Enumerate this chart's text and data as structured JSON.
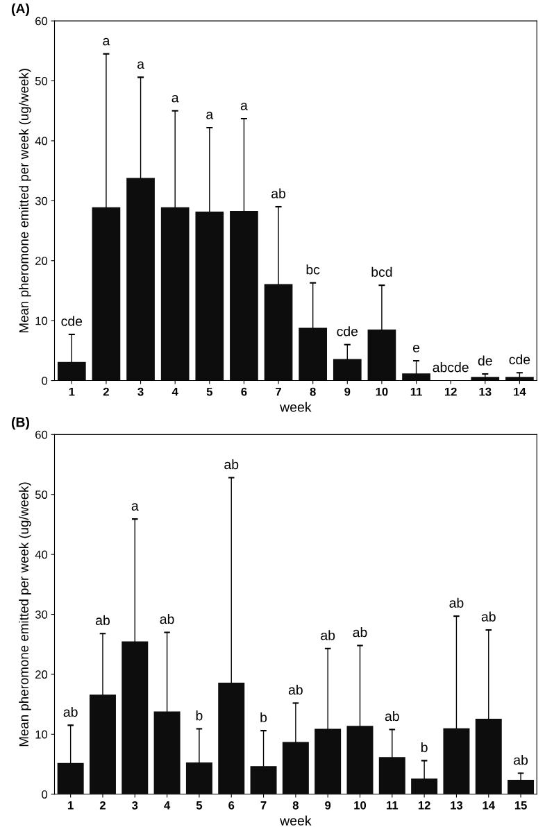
{
  "chart_data": [
    {
      "type": "bar",
      "title": "(A)",
      "xlabel": "week",
      "ylabel": "Mean pheromone emitted per week (ug/week)",
      "categories": [
        "1",
        "2",
        "3",
        "4",
        "5",
        "6",
        "7",
        "8",
        "9",
        "10",
        "11",
        "12",
        "13",
        "14"
      ],
      "values": [
        3.1,
        28.9,
        33.8,
        28.9,
        28.2,
        28.3,
        16.1,
        8.8,
        3.6,
        8.5,
        1.2,
        0,
        0.6,
        0.6
      ],
      "errors": [
        [
          3.1,
          7.7
        ],
        [
          28.9,
          54.5
        ],
        [
          33.8,
          50.6
        ],
        [
          28.9,
          45
        ],
        [
          28.2,
          42.2
        ],
        [
          28.3,
          43.7
        ],
        [
          16.1,
          29
        ],
        [
          8.8,
          16.3
        ],
        [
          3.6,
          6
        ],
        [
          8.5,
          15.9
        ],
        [
          1.2,
          3.3
        ],
        null,
        [
          0.6,
          1.1
        ],
        [
          0.6,
          1.3
        ]
      ],
      "color": "#0d0d0d",
      "ylim": [
        0,
        60
      ],
      "yticks": [
        0,
        10,
        20,
        30,
        40,
        50,
        60
      ],
      "grid": false,
      "legend": false,
      "annotations": [
        {
          "text": "cde",
          "x": "1",
          "y": 7.7
        },
        {
          "text": "a",
          "x": "2",
          "y": 54.5
        },
        {
          "text": "a",
          "x": "3",
          "y": 50.6
        },
        {
          "text": "a",
          "x": "4",
          "y": 45
        },
        {
          "text": "a",
          "x": "5",
          "y": 42.2
        },
        {
          "text": "a",
          "x": "6",
          "y": 43.7
        },
        {
          "text": "ab",
          "x": "7",
          "y": 29
        },
        {
          "text": "bc",
          "x": "8",
          "y": 16.3
        },
        {
          "text": "cde",
          "x": "9",
          "y": 6
        },
        {
          "text": "bcd",
          "x": "10",
          "y": 15.9
        },
        {
          "text": "e",
          "x": "11",
          "y": 3.3
        },
        {
          "text": "abcde",
          "x": "12",
          "y": 0
        },
        {
          "text": "de",
          "x": "13",
          "y": 1.1
        },
        {
          "text": "cde",
          "x": "14",
          "y": 1.3
        }
      ]
    },
    {
      "type": "bar",
      "title": "(B)",
      "xlabel": "week",
      "ylabel": "Mean pheromone emitted per week (ug/week)",
      "categories": [
        "1",
        "2",
        "3",
        "4",
        "5",
        "6",
        "7",
        "8",
        "9",
        "10",
        "11",
        "12",
        "13",
        "14",
        "15"
      ],
      "values": [
        5.2,
        16.6,
        25.5,
        13.8,
        5.3,
        18.6,
        4.7,
        8.7,
        10.9,
        11.4,
        6.2,
        2.6,
        11.0,
        12.6,
        2.4
      ],
      "errors": [
        [
          5.2,
          11.5
        ],
        [
          16.6,
          26.8
        ],
        [
          25.5,
          45.9
        ],
        [
          13.8,
          27
        ],
        [
          5.3,
          10.9
        ],
        [
          18.6,
          52.8
        ],
        [
          4.7,
          10.6
        ],
        [
          8.7,
          15.2
        ],
        [
          10.9,
          24.3
        ],
        [
          11.4,
          24.8
        ],
        [
          6.2,
          10.8
        ],
        [
          2.6,
          5.6
        ],
        [
          11.0,
          29.7
        ],
        [
          12.6,
          27.4
        ],
        [
          2.4,
          3.5
        ]
      ],
      "color": "#0d0d0d",
      "ylim": [
        0,
        60
      ],
      "yticks": [
        0,
        10,
        20,
        30,
        40,
        50,
        60
      ],
      "grid": false,
      "legend": false,
      "annotations": [
        {
          "text": "ab",
          "x": "1",
          "y": 11.5
        },
        {
          "text": "ab",
          "x": "2",
          "y": 26.8
        },
        {
          "text": "a",
          "x": "3",
          "y": 45.9
        },
        {
          "text": "ab",
          "x": "4",
          "y": 27
        },
        {
          "text": "b",
          "x": "5",
          "y": 10.9
        },
        {
          "text": "ab",
          "x": "6",
          "y": 52.8
        },
        {
          "text": "b",
          "x": "7",
          "y": 10.6
        },
        {
          "text": "ab",
          "x": "8",
          "y": 15.2
        },
        {
          "text": "ab",
          "x": "9",
          "y": 24.3
        },
        {
          "text": "ab",
          "x": "10",
          "y": 24.8
        },
        {
          "text": "ab",
          "x": "11",
          "y": 10.8
        },
        {
          "text": "b",
          "x": "12",
          "y": 5.6
        },
        {
          "text": "ab",
          "x": "13",
          "y": 29.7
        },
        {
          "text": "ab",
          "x": "14",
          "y": 27.4
        },
        {
          "text": "ab",
          "x": "15",
          "y": 3.5
        }
      ]
    }
  ]
}
